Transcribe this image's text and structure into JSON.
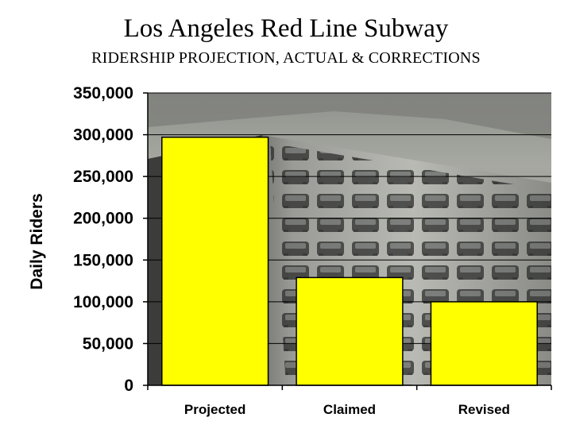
{
  "chart_data": {
    "type": "bar",
    "title": "Los Angeles Red Line Subway",
    "subtitle": "RIDERSHIP PROJECTION, ACTUAL & CORRECTIONS",
    "xlabel": "",
    "ylabel": "Daily Riders",
    "categories": [
      "Projected",
      "Claimed",
      "Revised"
    ],
    "values": [
      297000,
      129000,
      100000
    ],
    "ylim": [
      0,
      350000
    ],
    "yticks": [
      0,
      50000,
      100000,
      150000,
      200000,
      250000,
      300000,
      350000
    ],
    "ytick_labels": [
      "0",
      "50,000",
      "100,000",
      "150,000",
      "200,000",
      "250,000",
      "300,000",
      "350,000"
    ],
    "grid": true,
    "bar_color": "#ffff00",
    "background": "photo of freeway traffic congestion"
  }
}
